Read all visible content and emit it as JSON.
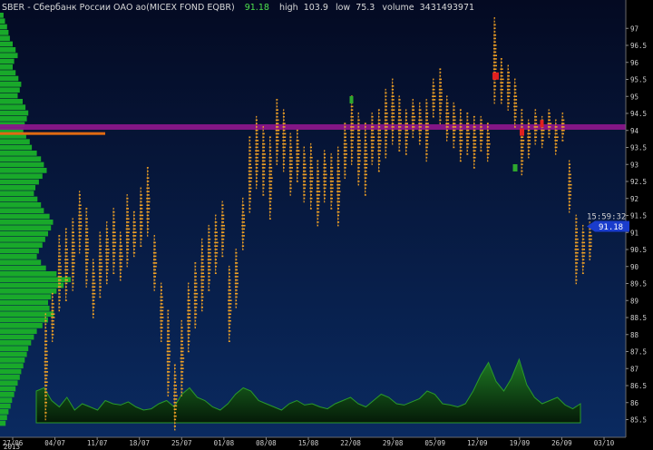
{
  "header": {
    "ticker": "SBER",
    "title": "Сбербанк России ОАО ао(MICEX FOND EQBR)",
    "price": "91.18",
    "high_label": "high",
    "high": "103.9",
    "low_label": "low",
    "low": "75.3",
    "volume_label": "volume",
    "volume": "3431493971"
  },
  "current": {
    "time": "15:59:32",
    "price": "91.18"
  },
  "chart_data": {
    "type": "bar",
    "style": "cluster-profile (per-day price clusters with volume-at-price profile)",
    "y_axis": {
      "ticks": [
        "97",
        "96.5",
        "96",
        "95.5",
        "95",
        "94.5",
        "94",
        "93.5",
        "93",
        "92.5",
        "92",
        "91.5",
        "91",
        "90.5",
        "90",
        "89.5",
        "89",
        "88.5",
        "88",
        "87.5",
        "87",
        "86.5",
        "86",
        "85.5"
      ],
      "range": [
        85.3,
        97.3
      ],
      "position": "right"
    },
    "x_axis": {
      "ticks": [
        "27/06",
        "04/07",
        "11/07",
        "18/07",
        "25/07",
        "01/08",
        "08/08",
        "15/08",
        "22/08",
        "29/08",
        "05/09",
        "12/09",
        "19/09",
        "26/09",
        "03/10"
      ],
      "year_label": "2013"
    },
    "horizontal_line": {
      "price": 94.1,
      "color": "#8a168a"
    },
    "poc_level": {
      "price": 94.0,
      "color": "#e06a12"
    },
    "days": [
      {
        "low": 85.5,
        "high": 88.6
      },
      {
        "low": 87.8,
        "high": 89.2
      },
      {
        "low": 88.7,
        "high": 90.9
      },
      {
        "low": 89.0,
        "high": 91.1
      },
      {
        "low": 89.3,
        "high": 91.4
      },
      {
        "low": 90.4,
        "high": 92.2
      },
      {
        "low": 89.4,
        "high": 91.7
      },
      {
        "low": 88.5,
        "high": 90.2
      },
      {
        "low": 89.1,
        "high": 91.0
      },
      {
        "low": 89.5,
        "high": 91.3
      },
      {
        "low": 89.8,
        "high": 91.7
      },
      {
        "low": 89.6,
        "high": 91.0
      },
      {
        "low": 90.0,
        "high": 92.1
      },
      {
        "low": 90.3,
        "high": 91.6
      },
      {
        "low": 90.6,
        "high": 92.3
      },
      {
        "low": 90.9,
        "high": 92.9
      },
      {
        "low": 89.3,
        "high": 90.9
      },
      {
        "low": 87.8,
        "high": 89.5
      },
      {
        "low": 86.2,
        "high": 88.7
      },
      {
        "low": 85.2,
        "high": 87.1
      },
      {
        "low": 86.2,
        "high": 88.4
      },
      {
        "low": 87.5,
        "high": 89.5
      },
      {
        "low": 88.2,
        "high": 90.1
      },
      {
        "low": 88.7,
        "high": 90.8
      },
      {
        "low": 89.3,
        "high": 91.2
      },
      {
        "low": 89.8,
        "high": 91.5
      },
      {
        "low": 90.3,
        "high": 91.9
      },
      {
        "low": 87.8,
        "high": 90.0
      },
      {
        "low": 88.8,
        "high": 90.5
      },
      {
        "low": 90.5,
        "high": 92.0
      },
      {
        "low": 91.6,
        "high": 93.8
      },
      {
        "low": 92.3,
        "high": 94.4
      },
      {
        "low": 92.1,
        "high": 94.1
      },
      {
        "low": 91.4,
        "high": 93.8
      },
      {
        "low": 93.0,
        "high": 94.9
      },
      {
        "low": 92.8,
        "high": 94.6
      },
      {
        "low": 92.1,
        "high": 93.9
      },
      {
        "low": 92.5,
        "high": 94.0
      },
      {
        "low": 91.9,
        "high": 93.5
      },
      {
        "low": 91.7,
        "high": 93.6
      },
      {
        "low": 91.2,
        "high": 93.1
      },
      {
        "low": 91.9,
        "high": 93.4
      },
      {
        "low": 91.7,
        "high": 93.3
      },
      {
        "low": 91.2,
        "high": 93.5
      },
      {
        "low": 92.6,
        "high": 94.2
      },
      {
        "low": 93.0,
        "high": 95.0
      },
      {
        "low": 92.4,
        "high": 94.5
      },
      {
        "low": 92.1,
        "high": 94.2
      },
      {
        "low": 93.0,
        "high": 94.5
      },
      {
        "low": 92.8,
        "high": 94.6
      },
      {
        "low": 93.2,
        "high": 95.2
      },
      {
        "low": 93.6,
        "high": 95.5
      },
      {
        "low": 93.4,
        "high": 95.0
      },
      {
        "low": 93.3,
        "high": 94.6
      },
      {
        "low": 93.8,
        "high": 94.9
      },
      {
        "low": 93.6,
        "high": 94.8
      },
      {
        "low": 93.1,
        "high": 94.9
      },
      {
        "low": 94.4,
        "high": 95.5
      },
      {
        "low": 94.2,
        "high": 95.8
      },
      {
        "low": 93.7,
        "high": 95.0
      },
      {
        "low": 93.5,
        "high": 94.8
      },
      {
        "low": 93.1,
        "high": 94.6
      },
      {
        "low": 93.3,
        "high": 94.5
      },
      {
        "low": 92.9,
        "high": 94.4
      },
      {
        "low": 93.4,
        "high": 94.4
      },
      {
        "low": 93.1,
        "high": 94.2
      },
      {
        "low": 94.8,
        "high": 97.3
      },
      {
        "low": 94.8,
        "high": 96.1
      },
      {
        "low": 94.6,
        "high": 95.9
      },
      {
        "low": 94.1,
        "high": 95.5
      },
      {
        "low": 92.7,
        "high": 94.6
      },
      {
        "low": 93.2,
        "high": 94.3
      },
      {
        "low": 93.6,
        "high": 94.6
      },
      {
        "low": 93.5,
        "high": 94.4
      },
      {
        "low": 93.8,
        "high": 94.6
      },
      {
        "low": 93.3,
        "high": 94.3
      },
      {
        "low": 93.7,
        "high": 94.5
      },
      {
        "low": 91.6,
        "high": 93.1
      },
      {
        "low": 89.5,
        "high": 91.5
      },
      {
        "low": 89.8,
        "high": 91.2
      },
      {
        "low": 90.2,
        "high": 91.3
      }
    ],
    "volume_series": [
      0.5,
      0.55,
      0.35,
      0.25,
      0.4,
      0.2,
      0.3,
      0.25,
      0.2,
      0.35,
      0.3,
      0.28,
      0.33,
      0.25,
      0.2,
      0.22,
      0.3,
      0.35,
      0.25,
      0.45,
      0.55,
      0.4,
      0.35,
      0.25,
      0.2,
      0.3,
      0.45,
      0.55,
      0.5,
      0.35,
      0.3,
      0.25,
      0.2,
      0.3,
      0.35,
      0.28,
      0.3,
      0.25,
      0.22,
      0.3,
      0.35,
      0.4,
      0.3,
      0.25,
      0.35,
      0.45,
      0.4,
      0.3,
      0.28,
      0.33,
      0.38,
      0.5,
      0.45,
      0.3,
      0.28,
      0.25,
      0.3,
      0.5,
      0.75,
      0.95,
      0.65,
      0.5,
      0.7,
      1.0,
      0.6,
      0.4,
      0.3,
      0.35,
      0.4,
      0.28,
      0.22,
      0.3
    ],
    "profile": [
      0.05,
      0.07,
      0.1,
      0.12,
      0.14,
      0.18,
      0.22,
      0.25,
      0.2,
      0.18,
      0.22,
      0.26,
      0.3,
      0.28,
      0.25,
      0.32,
      0.36,
      0.4,
      0.38,
      0.35,
      0.33,
      0.37,
      0.42,
      0.45,
      0.52,
      0.58,
      0.62,
      0.66,
      0.6,
      0.55,
      0.5,
      0.48,
      0.53,
      0.58,
      0.62,
      0.7,
      0.75,
      0.72,
      0.68,
      0.64,
      0.6,
      0.55,
      0.52,
      0.58,
      0.65,
      0.8,
      1.0,
      0.9,
      0.8,
      0.72,
      0.68,
      0.7,
      0.76,
      0.68,
      0.6,
      0.52,
      0.48,
      0.44,
      0.4,
      0.38,
      0.35,
      0.33,
      0.3,
      0.28,
      0.25,
      0.22,
      0.2,
      0.17,
      0.15,
      0.12,
      0.1,
      0.08
    ],
    "colors": {
      "background_top": "#040a22",
      "background_bottom": "#0a2a60",
      "cluster": "#f2a225",
      "cluster_high": "#e02020",
      "cluster_low": "#2ea82e",
      "volume_fill": "#0b4e12",
      "volume_line": "#2a9a2a",
      "profile": "#19a92a",
      "current_label": "#1a3ccc",
      "axis_text": "#cfcfcf",
      "grid": false
    }
  }
}
